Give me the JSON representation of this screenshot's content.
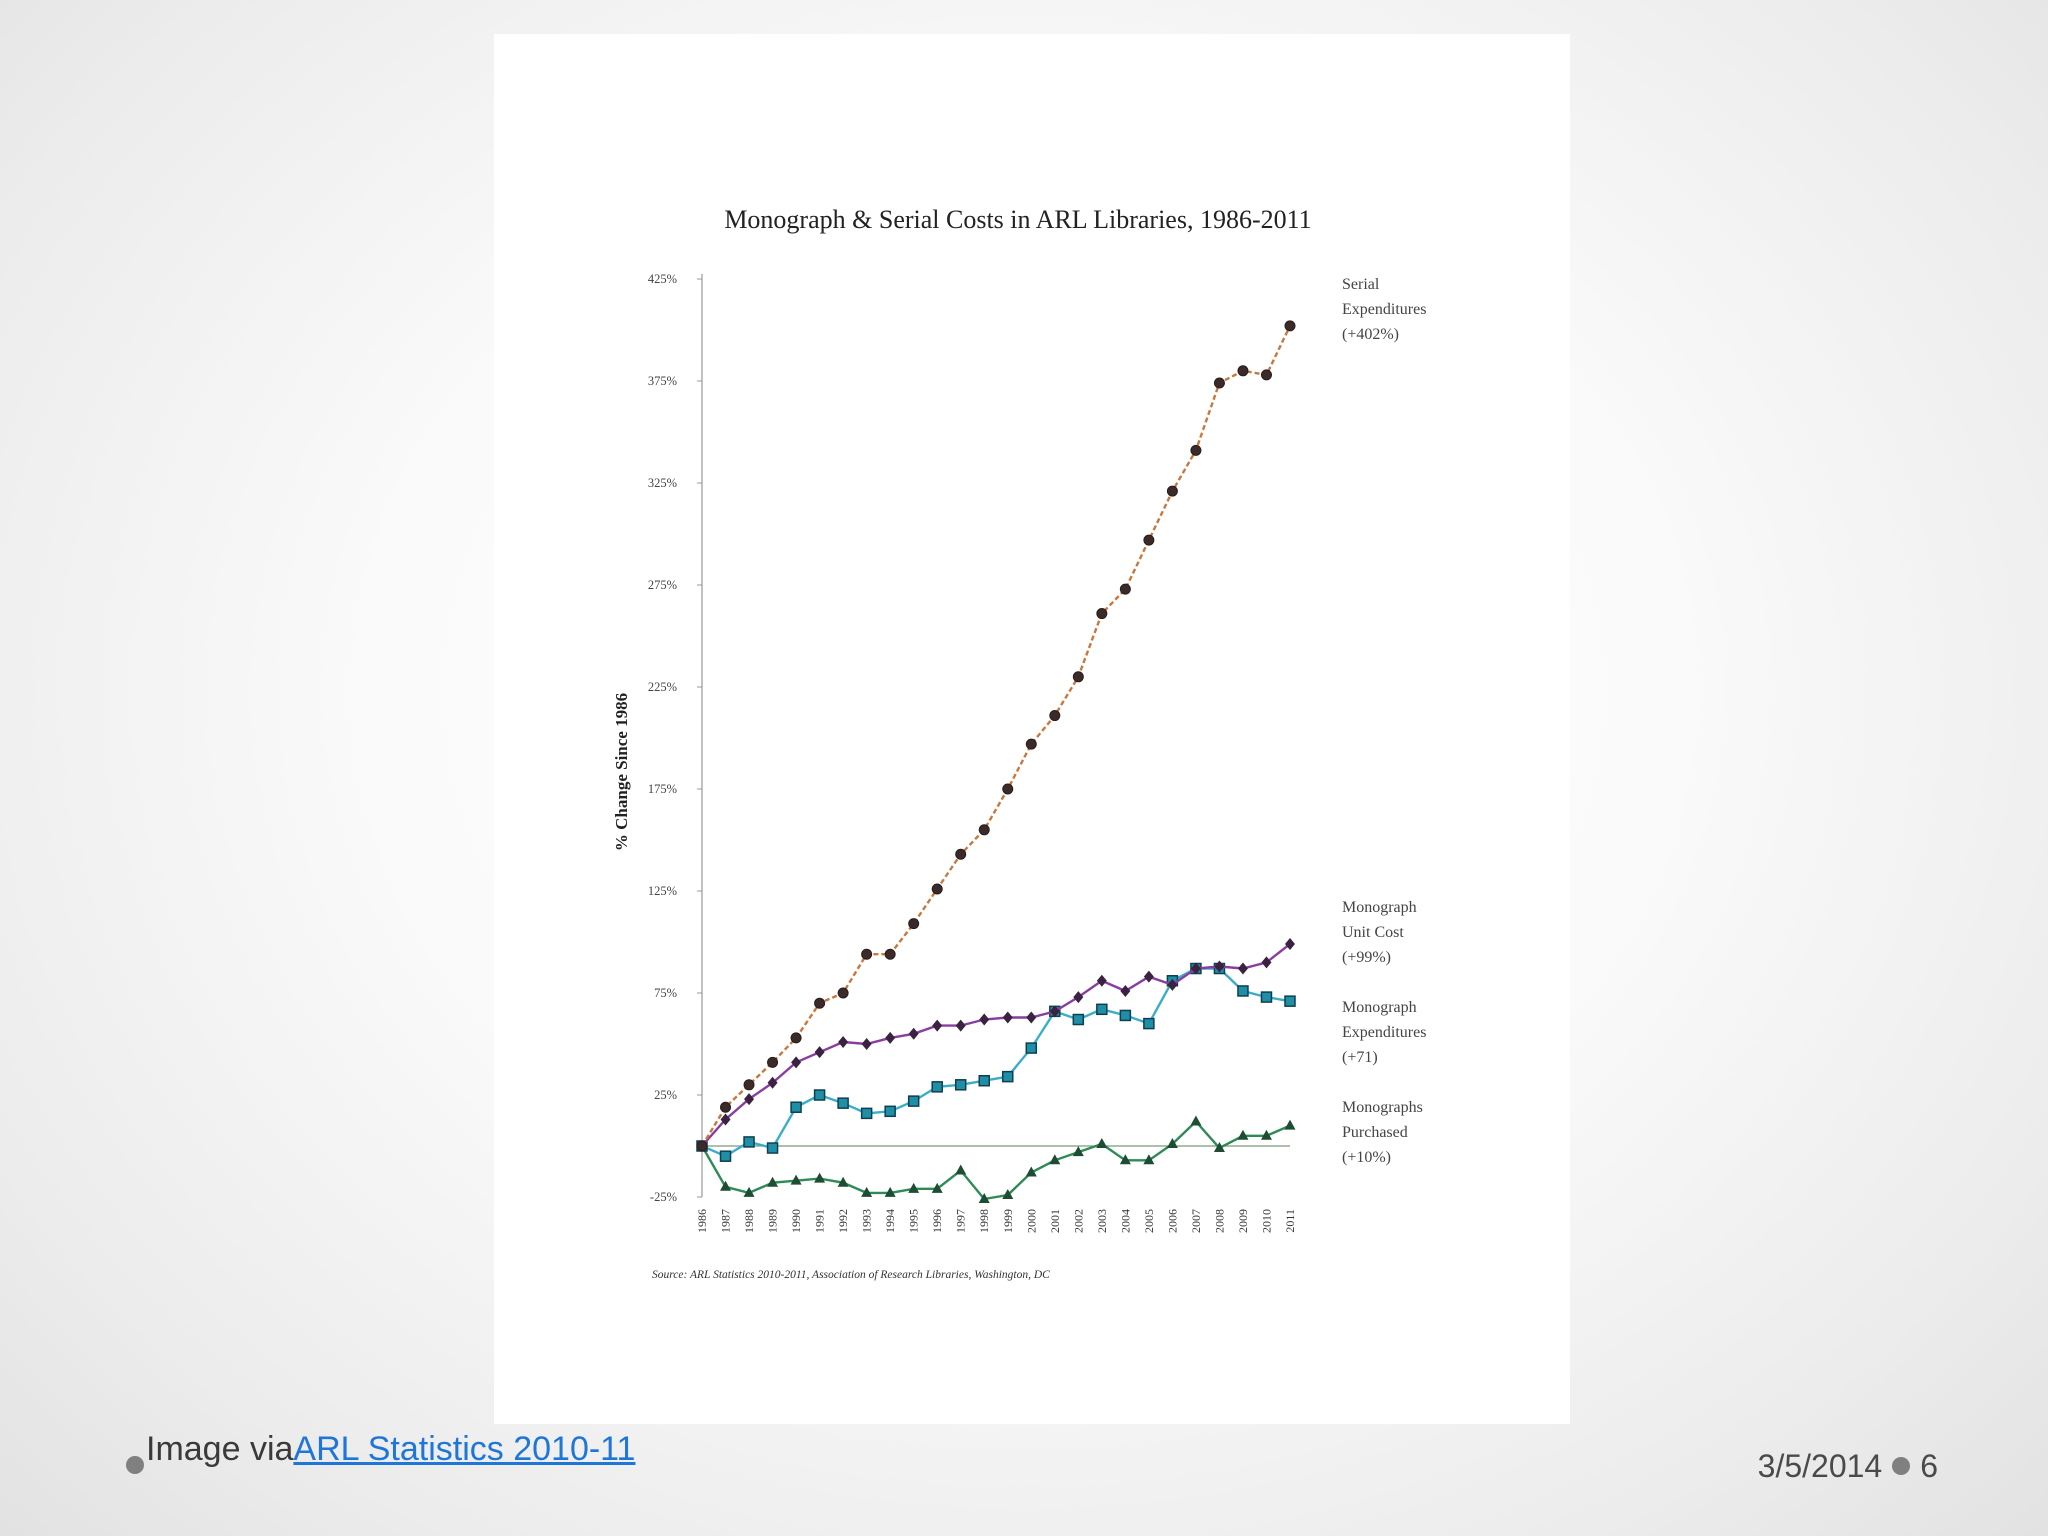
{
  "slide": {
    "caption_prefix": "Image via ",
    "caption_link": "ARL Statistics 2010-11",
    "date": "3/5/2014",
    "page_number": "6"
  },
  "chart_data": {
    "type": "line",
    "title": "Monograph & Serial Costs in ARL Libraries, 1986-2011",
    "ylabel": "% Change Since 1986",
    "xlabel": "",
    "ylim": [
      -25,
      425
    ],
    "y_ticks": [
      "425%",
      "375%",
      "325%",
      "275%",
      "225%",
      "175%",
      "125%",
      "75%",
      "25%",
      "-25%"
    ],
    "y_tick_values": [
      425,
      375,
      325,
      275,
      225,
      175,
      125,
      75,
      25,
      -25
    ],
    "x": [
      "1986",
      "1987",
      "1988",
      "1989",
      "1990",
      "1991",
      "1992",
      "1993",
      "1994",
      "1995",
      "1996",
      "1997",
      "1998",
      "1999",
      "2000",
      "2001",
      "2002",
      "2003",
      "2004",
      "2005",
      "2006",
      "2007",
      "2008",
      "2009",
      "2010",
      "2011"
    ],
    "series": [
      {
        "name_lines": [
          "Serial",
          "Expenditures",
          "(+402%)"
        ],
        "color": "#c9773c",
        "marker": "circle",
        "values": [
          0,
          19,
          30,
          41,
          53,
          70,
          75,
          94,
          94,
          109,
          126,
          143,
          155,
          175,
          197,
          211,
          230,
          261,
          273,
          297,
          321,
          341,
          374,
          380,
          378,
          402
        ]
      },
      {
        "name_lines": [
          "Monograph",
          "Unit Cost",
          "(+99%)"
        ],
        "color": "#8a3da0",
        "marker": "diamond",
        "values": [
          0,
          13,
          23,
          31,
          41,
          46,
          51,
          50,
          53,
          55,
          59,
          59,
          62,
          63,
          63,
          66,
          73,
          81,
          76,
          83,
          79,
          87,
          88,
          87,
          90,
          99
        ]
      },
      {
        "name_lines": [
          "Monograph",
          "Expenditures",
          "(+71)"
        ],
        "color": "#3aaec8",
        "marker": "square",
        "values": [
          0,
          -5,
          2,
          -1,
          19,
          25,
          21,
          16,
          17,
          22,
          29,
          30,
          32,
          34,
          48,
          66,
          62,
          67,
          64,
          60,
          81,
          87,
          87,
          76,
          73,
          71
        ]
      },
      {
        "name_lines": [
          "Monographs",
          "Purchased",
          "(+10%)"
        ],
        "color": "#2e8a56",
        "marker": "triangle",
        "values": [
          0,
          -20,
          -23,
          -18,
          -17,
          -16,
          -18,
          -23,
          -23,
          -21,
          -21,
          -12,
          -26,
          -24,
          -13,
          -7,
          -3,
          1,
          -7,
          -7,
          1,
          12,
          -1,
          5,
          5,
          10
        ]
      }
    ],
    "source": "Source: ARL Statistics 2010-2011, Association of Research Libraries, Washington, DC",
    "legend_placement": "right, labels at line ends",
    "grid": false
  }
}
